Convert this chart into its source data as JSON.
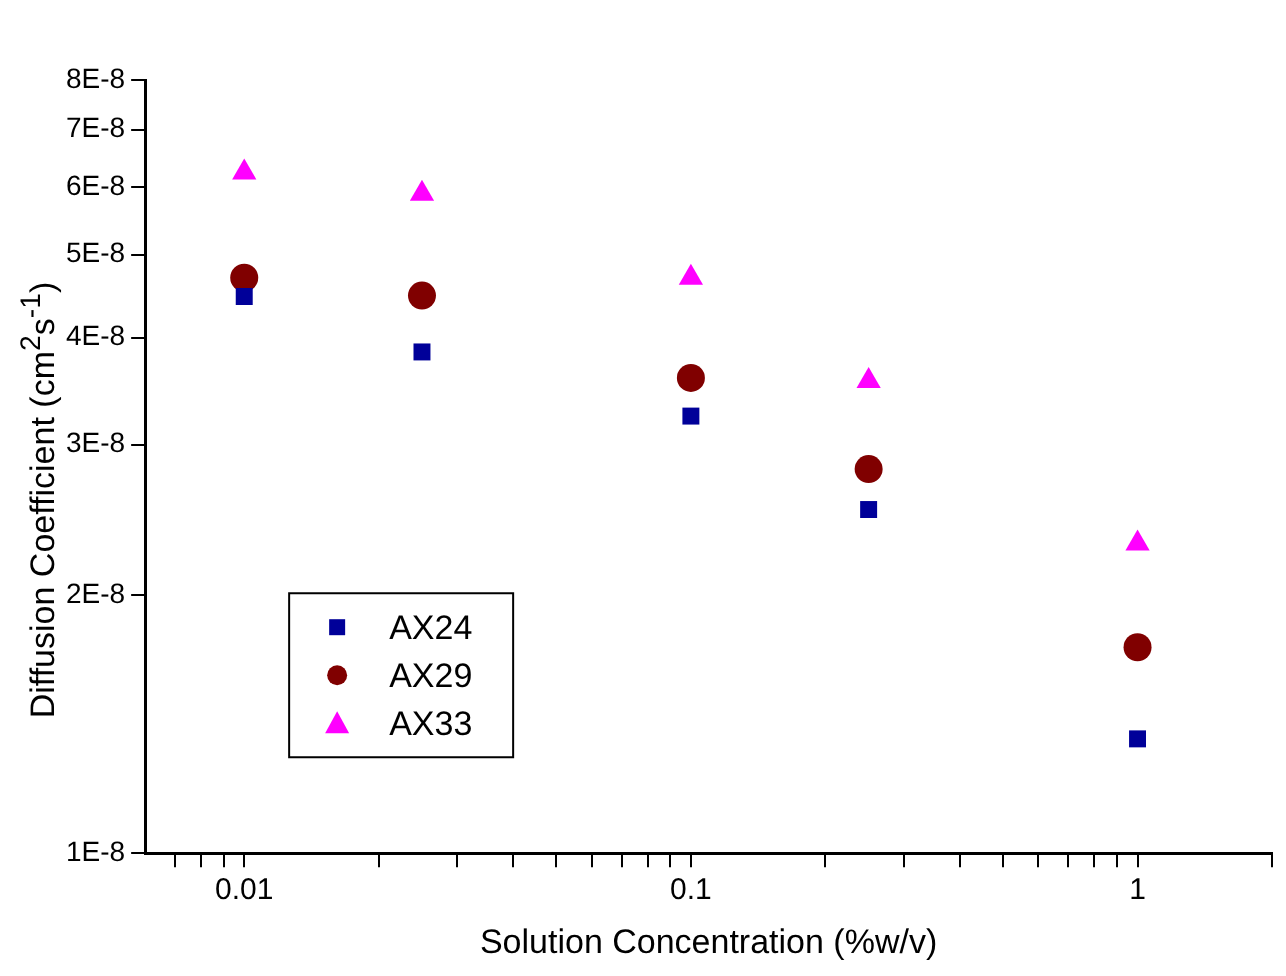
{
  "chart_data": {
    "type": "scatter",
    "xlabel": "Solution Concentration (%w/v)",
    "ylabel": "Diffusion Coefficient (cm$^{2}$s$^{-1}$)",
    "log": "xy",
    "grid": false,
    "legend": "bottom left",
    "x": [
      0.01,
      0.025,
      0.1,
      0.25,
      1
    ],
    "series": [
      {
        "name": "AX24",
        "color": "#000099",
        "marker": "square",
        "values": [
          4.47e-08,
          3.85e-08,
          3.24e-08,
          2.52e-08,
          1.36e-08
        ]
      },
      {
        "name": "AX29",
        "color": "#800000",
        "marker": "circle",
        "values": [
          4.7e-08,
          4.48e-08,
          3.59e-08,
          2.81e-08,
          1.74e-08
        ]
      },
      {
        "name": "AX33",
        "color": "#ff00ff",
        "marker": "triangle",
        "values": [
          6.24e-08,
          5.89e-08,
          4.7e-08,
          3.56e-08,
          2.3e-08
        ]
      }
    ],
    "xlim": [
      0.006,
      2
    ],
    "ylim": [
      1e-08,
      8e-08
    ],
    "xticks": [
      {
        "value": 0.007,
        "label": null
      },
      {
        "value": 0.008,
        "label": null
      },
      {
        "value": 0.009,
        "label": null
      },
      0.01,
      {
        "value": 0.02,
        "label": null
      },
      {
        "value": 0.03,
        "label": null
      },
      {
        "value": 0.04,
        "label": null
      },
      {
        "value": 0.05,
        "label": null
      },
      {
        "value": 0.06,
        "label": null
      },
      {
        "value": 0.07,
        "label": null
      },
      {
        "value": 0.08,
        "label": null
      },
      {
        "value": 0.09,
        "label": null
      },
      0.1,
      {
        "value": 0.2,
        "label": null
      },
      {
        "value": 0.3,
        "label": null
      },
      {
        "value": 0.4,
        "label": null
      },
      {
        "value": 0.5,
        "label": null
      },
      {
        "value": 0.6,
        "label": null
      },
      {
        "value": 0.7,
        "label": null
      },
      {
        "value": 0.8,
        "label": null
      },
      {
        "value": 0.9,
        "label": null
      },
      1,
      {
        "value": 2,
        "label": null
      }
    ],
    "yticks": [
      {
        "value": 1e-08,
        "label": "1E-8"
      },
      {
        "value": 2e-08,
        "label": "2E-8"
      },
      {
        "value": 3e-08,
        "label": "3E-8"
      },
      {
        "value": 4e-08,
        "label": "4E-8"
      },
      {
        "value": 5e-08,
        "label": "5E-8"
      },
      {
        "value": 6e-08,
        "label": "6E-8"
      },
      {
        "value": 7e-08,
        "label": "7E-8"
      },
      {
        "value": 8e-08,
        "label": "8E-8"
      }
    ]
  }
}
